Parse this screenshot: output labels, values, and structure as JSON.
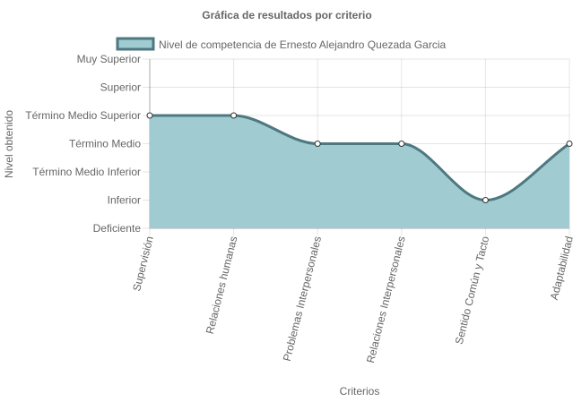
{
  "chart_data": {
    "type": "area",
    "title": "Gráfica de resultados por criterio",
    "xlabel": "Criterios",
    "ylabel": "Nivel obtenido",
    "categories": [
      "Supervisión",
      "Relaciones humanas",
      "Problemas Interpersonales",
      "Relaciones Interpersonales",
      "Sentido Común y Tacto",
      "Adaptabilidad"
    ],
    "y_levels": [
      "Deficiente",
      "Inferior",
      "Término Medio Inferior",
      "Término Medio",
      "Término Medio Superior",
      "Superior",
      "Muy Superior"
    ],
    "ylim": [
      0,
      6
    ],
    "grid": true,
    "legend_position": "top",
    "series": [
      {
        "name": "Nivel de competencia de Ernesto Alejandro Quezada Garcia",
        "values": [
          4,
          4,
          3,
          3,
          1,
          3
        ],
        "fill_color": "#a0cbd0",
        "line_color": "#4e7880"
      }
    ]
  }
}
